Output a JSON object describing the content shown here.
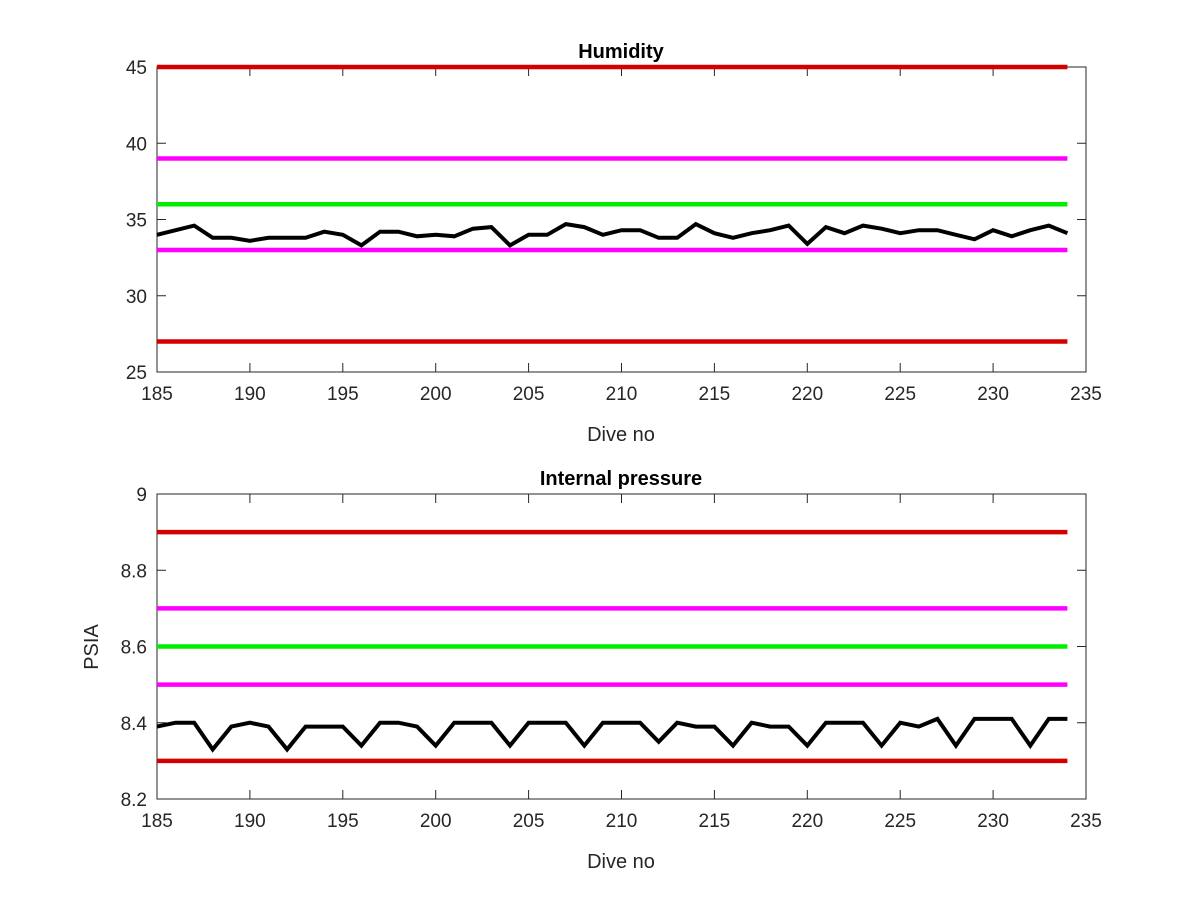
{
  "chart_data": [
    {
      "type": "line",
      "title": "Humidity",
      "xlabel": "Dive no",
      "ylabel": "",
      "xlim": [
        185,
        235
      ],
      "ylim": [
        25,
        45
      ],
      "xticks": [
        "185",
        "190",
        "195",
        "200",
        "205",
        "210",
        "215",
        "220",
        "225",
        "230",
        "235"
      ],
      "yticks": [
        "25",
        "30",
        "35",
        "40",
        "45"
      ],
      "grid": false,
      "thresholds": [
        {
          "value": 45,
          "color": "#d40000"
        },
        {
          "value": 39,
          "color": "#ff00ff"
        },
        {
          "value": 36,
          "color": "#00ee00"
        },
        {
          "value": 33,
          "color": "#ff00ff"
        },
        {
          "value": 27,
          "color": "#d40000"
        }
      ],
      "threshold_x": [
        185,
        234
      ],
      "series": [
        {
          "color": "#000000",
          "x": [
            185,
            186,
            187,
            188,
            189,
            190,
            191,
            192,
            193,
            194,
            195,
            196,
            197,
            198,
            199,
            200,
            201,
            202,
            203,
            204,
            205,
            206,
            207,
            208,
            209,
            210,
            211,
            212,
            213,
            214,
            215,
            216,
            217,
            218,
            219,
            220,
            221,
            222,
            223,
            224,
            225,
            226,
            227,
            228,
            229,
            230,
            231,
            232,
            233,
            234
          ],
          "values": [
            34.0,
            34.3,
            34.6,
            33.8,
            33.8,
            33.6,
            33.8,
            33.8,
            33.8,
            34.2,
            34.0,
            33.3,
            34.2,
            34.2,
            33.9,
            34.0,
            33.9,
            34.4,
            34.5,
            33.3,
            34.0,
            34.0,
            34.7,
            34.5,
            34.0,
            34.3,
            34.3,
            33.8,
            33.8,
            34.7,
            34.1,
            33.8,
            34.1,
            34.3,
            34.6,
            33.4,
            34.5,
            34.1,
            34.6,
            34.4,
            34.1,
            34.3,
            34.3,
            34.0,
            33.7,
            34.3,
            33.9,
            34.3,
            34.6,
            34.1
          ]
        }
      ]
    },
    {
      "type": "line",
      "title": "Internal pressure",
      "xlabel": "Dive no",
      "ylabel": "PSIA",
      "xlim": [
        185,
        235
      ],
      "ylim": [
        8.2,
        9.0
      ],
      "xticks": [
        "185",
        "190",
        "195",
        "200",
        "205",
        "210",
        "215",
        "220",
        "225",
        "230",
        "235"
      ],
      "yticks": [
        "8.2",
        "8.4",
        "8.6",
        "8.8",
        "9"
      ],
      "grid": false,
      "thresholds": [
        {
          "value": 8.9,
          "color": "#d40000"
        },
        {
          "value": 8.7,
          "color": "#ff00ff"
        },
        {
          "value": 8.6,
          "color": "#00ee00"
        },
        {
          "value": 8.5,
          "color": "#ff00ff"
        },
        {
          "value": 8.3,
          "color": "#d40000"
        }
      ],
      "threshold_x": [
        185,
        234
      ],
      "series": [
        {
          "color": "#000000",
          "x": [
            185,
            186,
            187,
            188,
            189,
            190,
            191,
            192,
            193,
            194,
            195,
            196,
            197,
            198,
            199,
            200,
            201,
            202,
            203,
            204,
            205,
            206,
            207,
            208,
            209,
            210,
            211,
            212,
            213,
            214,
            215,
            216,
            217,
            218,
            219,
            220,
            221,
            222,
            223,
            224,
            225,
            226,
            227,
            228,
            229,
            230,
            231,
            232,
            233,
            234
          ],
          "values": [
            8.39,
            8.4,
            8.4,
            8.33,
            8.39,
            8.4,
            8.39,
            8.33,
            8.39,
            8.39,
            8.39,
            8.34,
            8.4,
            8.4,
            8.39,
            8.34,
            8.4,
            8.4,
            8.4,
            8.34,
            8.4,
            8.4,
            8.4,
            8.34,
            8.4,
            8.4,
            8.4,
            8.35,
            8.4,
            8.39,
            8.39,
            8.34,
            8.4,
            8.39,
            8.39,
            8.34,
            8.4,
            8.4,
            8.4,
            8.34,
            8.4,
            8.39,
            8.41,
            8.34,
            8.41,
            8.41,
            8.41,
            8.34,
            8.41,
            8.41
          ]
        }
      ]
    }
  ]
}
